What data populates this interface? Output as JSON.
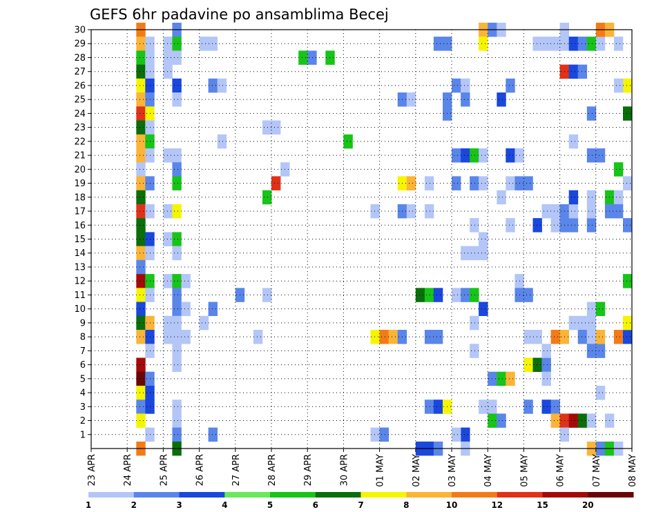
{
  "chart_data": {
    "type": "heatmap",
    "title": "GEFS 6hr padavine po ansamblima Becej",
    "x_ticks": [
      "23 APR",
      "24 APR",
      "25 APR",
      "26 APR",
      "27 APR",
      "28 APR",
      "29 APR",
      "30 APR",
      "01 MAY",
      "02 MAY",
      "03 MAY",
      "04 MAY",
      "05 MAY",
      "06 MAY",
      "07 MAY",
      "08 MAY"
    ],
    "y_ticks": [
      "1",
      "2",
      "3",
      "4",
      "5",
      "6",
      "7",
      "8",
      "9",
      "10",
      "11",
      "12",
      "13",
      "14",
      "15",
      "16",
      "17",
      "18",
      "19",
      "20",
      "21",
      "22",
      "23",
      "24",
      "25",
      "26",
      "27",
      "28",
      "29",
      "30"
    ],
    "y_range": [
      0,
      30
    ],
    "x_range_days": [
      "23 APR",
      "08 MAY"
    ],
    "grid": "dotted",
    "colorbar": {
      "labels": [
        "1",
        "2",
        "3",
        "4",
        "5",
        "6",
        "7",
        "8",
        "10",
        "12",
        "15",
        "20"
      ],
      "colors": [
        "#b3c6f7",
        "#5a86ea",
        "#1a47dc",
        "#6ae85c",
        "#17c417",
        "#0a6e0a",
        "#f5f500",
        "#fbb437",
        "#f37b17",
        "#e03219",
        "#a40a0a",
        "#6a0606"
      ]
    },
    "cells": [
      [
        1.25,
        30,
        9
      ],
      [
        1.25,
        29,
        8
      ],
      [
        1.25,
        28,
        5
      ],
      [
        1.25,
        27,
        6
      ],
      [
        1.25,
        26,
        7
      ],
      [
        1.25,
        25,
        8
      ],
      [
        1.25,
        24,
        10
      ],
      [
        1.25,
        23,
        6
      ],
      [
        1.25,
        22,
        8
      ],
      [
        1.25,
        21,
        8
      ],
      [
        1.25,
        20,
        1
      ],
      [
        1.25,
        19,
        8
      ],
      [
        1.25,
        18,
        6
      ],
      [
        1.25,
        17,
        10
      ],
      [
        1.25,
        16,
        6
      ],
      [
        1.25,
        15,
        6
      ],
      [
        1.25,
        14,
        8
      ],
      [
        1.25,
        13,
        2
      ],
      [
        1.25,
        12,
        11
      ],
      [
        1.25,
        11,
        7
      ],
      [
        1.25,
        10,
        3
      ],
      [
        1.25,
        9,
        6
      ],
      [
        1.25,
        8,
        8
      ],
      [
        1.25,
        6,
        11
      ],
      [
        1.25,
        5,
        12
      ],
      [
        1.25,
        4,
        7
      ],
      [
        1.25,
        3,
        2
      ],
      [
        1.25,
        2,
        7
      ],
      [
        1.25,
        0,
        9
      ],
      [
        1.5,
        29,
        1
      ],
      [
        1.5,
        28,
        1
      ],
      [
        1.5,
        27,
        1
      ],
      [
        1.5,
        26,
        3
      ],
      [
        1.5,
        25,
        2
      ],
      [
        1.5,
        24,
        7
      ],
      [
        1.5,
        23,
        1
      ],
      [
        1.5,
        22,
        5
      ],
      [
        1.5,
        21,
        1
      ],
      [
        1.5,
        19,
        2
      ],
      [
        1.5,
        17,
        1
      ],
      [
        1.5,
        15,
        3
      ],
      [
        1.5,
        14,
        1
      ],
      [
        1.5,
        12,
        5
      ],
      [
        1.5,
        11,
        1
      ],
      [
        1.5,
        9,
        8
      ],
      [
        1.5,
        8,
        3
      ],
      [
        1.5,
        7,
        1
      ],
      [
        1.5,
        5,
        2
      ],
      [
        1.5,
        4,
        3
      ],
      [
        1.5,
        3,
        3
      ],
      [
        1.5,
        1,
        1
      ],
      [
        2.0,
        29,
        1
      ],
      [
        2.0,
        28,
        1
      ],
      [
        2.0,
        27,
        1
      ],
      [
        2.0,
        21,
        1
      ],
      [
        2.0,
        17,
        1
      ],
      [
        2.0,
        15,
        1
      ],
      [
        2.0,
        12,
        1
      ],
      [
        2.0,
        9,
        1
      ],
      [
        2.0,
        8,
        1
      ],
      [
        2.25,
        30,
        2
      ],
      [
        2.25,
        29,
        5
      ],
      [
        2.25,
        28,
        1
      ],
      [
        2.25,
        26,
        3
      ],
      [
        2.25,
        25,
        1
      ],
      [
        2.25,
        21,
        1
      ],
      [
        2.25,
        20,
        2
      ],
      [
        2.25,
        19,
        5
      ],
      [
        2.25,
        17,
        7
      ],
      [
        2.25,
        15,
        5
      ],
      [
        2.25,
        14,
        1
      ],
      [
        2.25,
        12,
        5
      ],
      [
        2.25,
        11,
        2
      ],
      [
        2.25,
        10,
        2
      ],
      [
        2.25,
        9,
        1
      ],
      [
        2.25,
        8,
        1
      ],
      [
        2.25,
        7,
        1
      ],
      [
        2.25,
        6,
        1
      ],
      [
        2.25,
        3,
        1
      ],
      [
        2.25,
        2,
        1
      ],
      [
        2.25,
        1,
        2
      ],
      [
        2.25,
        0,
        6
      ],
      [
        2.5,
        12,
        1
      ],
      [
        2.5,
        10,
        1
      ],
      [
        2.5,
        8,
        1
      ],
      [
        3.0,
        29,
        1
      ],
      [
        3.25,
        29,
        1
      ],
      [
        3.0,
        9,
        1
      ],
      [
        3.25,
        10,
        2
      ],
      [
        3.25,
        26,
        2
      ],
      [
        3.5,
        26,
        1
      ],
      [
        3.25,
        1,
        2
      ],
      [
        3.5,
        22,
        1
      ],
      [
        4.0,
        11,
        2
      ],
      [
        4.5,
        8,
        1
      ],
      [
        4.75,
        11,
        1
      ],
      [
        4.75,
        23,
        1
      ],
      [
        5.0,
        23,
        1
      ],
      [
        5.25,
        20,
        1
      ],
      [
        4.75,
        18,
        5
      ],
      [
        5.0,
        19,
        10
      ],
      [
        5.75,
        28,
        5
      ],
      [
        6.0,
        28,
        2
      ],
      [
        6.5,
        28,
        5
      ],
      [
        7.0,
        22,
        5
      ],
      [
        7.75,
        8,
        7
      ],
      [
        8.0,
        8,
        9
      ],
      [
        8.25,
        8,
        8
      ],
      [
        8.5,
        8,
        2
      ],
      [
        7.75,
        1,
        1
      ],
      [
        8.0,
        1,
        2
      ],
      [
        7.75,
        17,
        1
      ],
      [
        8.5,
        25,
        2
      ],
      [
        8.75,
        25,
        1
      ],
      [
        8.5,
        19,
        7
      ],
      [
        8.75,
        19,
        8
      ],
      [
        8.5,
        17,
        2
      ],
      [
        8.75,
        17,
        1
      ],
      [
        9.0,
        11,
        6
      ],
      [
        9.25,
        11,
        5
      ],
      [
        9.5,
        11,
        3
      ],
      [
        9.25,
        17,
        1
      ],
      [
        9.25,
        8,
        2
      ],
      [
        9.5,
        8,
        2
      ],
      [
        9.0,
        0,
        3
      ],
      [
        9.25,
        0,
        3
      ],
      [
        9.5,
        0,
        2
      ],
      [
        9.25,
        3,
        2
      ],
      [
        9.5,
        3,
        3
      ],
      [
        9.75,
        3,
        7
      ],
      [
        9.5,
        29,
        2
      ],
      [
        9.75,
        29,
        2
      ],
      [
        9.25,
        19,
        1
      ],
      [
        9.75,
        24,
        2
      ],
      [
        9.75,
        25,
        2
      ],
      [
        10.0,
        26,
        2
      ],
      [
        10.25,
        26,
        1
      ],
      [
        10.25,
        25,
        2
      ],
      [
        10.0,
        21,
        2
      ],
      [
        10.25,
        21,
        3
      ],
      [
        10.5,
        21,
        5
      ],
      [
        10.75,
        21,
        1
      ],
      [
        10.0,
        19,
        2
      ],
      [
        10.5,
        19,
        2
      ],
      [
        10.75,
        19,
        1
      ],
      [
        10.0,
        11,
        1
      ],
      [
        10.25,
        11,
        2
      ],
      [
        10.5,
        11,
        5
      ],
      [
        10.25,
        14,
        1
      ],
      [
        10.5,
        14,
        1
      ],
      [
        10.75,
        14,
        1
      ],
      [
        10.75,
        15,
        1
      ],
      [
        10.5,
        16,
        1
      ],
      [
        10.5,
        9,
        1
      ],
      [
        10.5,
        7,
        1
      ],
      [
        10.25,
        1,
        3
      ],
      [
        10.0,
        1,
        1
      ],
      [
        10.25,
        0,
        1
      ],
      [
        10.75,
        10,
        3
      ],
      [
        10.75,
        3,
        1
      ],
      [
        11.0,
        3,
        1
      ],
      [
        11.0,
        2,
        5
      ],
      [
        11.25,
        2,
        2
      ],
      [
        11.0,
        5,
        2
      ],
      [
        11.25,
        5,
        5
      ],
      [
        11.5,
        5,
        8
      ],
      [
        10.75,
        30,
        8
      ],
      [
        11.0,
        30,
        2
      ],
      [
        11.25,
        30,
        1
      ],
      [
        10.75,
        29,
        7
      ],
      [
        11.25,
        18,
        1
      ],
      [
        11.25,
        25,
        3
      ],
      [
        11.5,
        26,
        2
      ],
      [
        11.5,
        21,
        3
      ],
      [
        11.75,
        21,
        1
      ],
      [
        11.5,
        19,
        1
      ],
      [
        11.75,
        19,
        2
      ],
      [
        12.0,
        19,
        2
      ],
      [
        11.75,
        12,
        1
      ],
      [
        11.75,
        11,
        2
      ],
      [
        12.0,
        11,
        2
      ],
      [
        11.5,
        16,
        1
      ],
      [
        12.0,
        8,
        1
      ],
      [
        12.25,
        8,
        1
      ],
      [
        12.0,
        6,
        7
      ],
      [
        12.25,
        6,
        6
      ],
      [
        12.5,
        6,
        2
      ],
      [
        12.5,
        5,
        1
      ],
      [
        12.0,
        3,
        2
      ],
      [
        12.5,
        3,
        3
      ],
      [
        12.75,
        3,
        2
      ],
      [
        12.5,
        7,
        1
      ],
      [
        12.25,
        16,
        3
      ],
      [
        12.75,
        16,
        1
      ],
      [
        13.0,
        16,
        2
      ],
      [
        13.25,
        16,
        2
      ],
      [
        12.5,
        17,
        1
      ],
      [
        12.75,
        17,
        1
      ],
      [
        13.0,
        17,
        2
      ],
      [
        13.25,
        17,
        1
      ],
      [
        12.75,
        8,
        9
      ],
      [
        13.0,
        8,
        8
      ],
      [
        12.75,
        2,
        8
      ],
      [
        13.0,
        2,
        10
      ],
      [
        13.25,
        2,
        11
      ],
      [
        13.5,
        2,
        6
      ],
      [
        13.0,
        1,
        1
      ],
      [
        13.0,
        30,
        1
      ],
      [
        12.75,
        29,
        1
      ],
      [
        12.5,
        29,
        1
      ],
      [
        13.0,
        29,
        1
      ],
      [
        13.25,
        29,
        3
      ],
      [
        13.5,
        29,
        2
      ],
      [
        13.75,
        29,
        5
      ],
      [
        14.0,
        29,
        1
      ],
      [
        12.25,
        29,
        1
      ],
      [
        13.0,
        27,
        10
      ],
      [
        13.25,
        27,
        3
      ],
      [
        13.5,
        27,
        2
      ],
      [
        13.25,
        22,
        1
      ],
      [
        13.25,
        18,
        3
      ],
      [
        13.75,
        18,
        1
      ],
      [
        13.5,
        9,
        1
      ],
      [
        13.25,
        9,
        1
      ],
      [
        13.75,
        9,
        1
      ],
      [
        13.5,
        8,
        2
      ],
      [
        13.75,
        8,
        1
      ],
      [
        13.75,
        10,
        1
      ],
      [
        13.75,
        16,
        2
      ],
      [
        13.75,
        17,
        1
      ],
      [
        13.75,
        21,
        2
      ],
      [
        14.0,
        21,
        2
      ],
      [
        13.75,
        24,
        2
      ],
      [
        13.75,
        7,
        2
      ],
      [
        14.0,
        7,
        2
      ],
      [
        14.0,
        8,
        8
      ],
      [
        14.0,
        10,
        5
      ],
      [
        14.0,
        4,
        1
      ],
      [
        13.75,
        2,
        1
      ],
      [
        14.25,
        2,
        1
      ],
      [
        13.75,
        0,
        8
      ],
      [
        14.0,
        0,
        2
      ],
      [
        14.25,
        0,
        5
      ],
      [
        14.5,
        0,
        1
      ],
      [
        14.0,
        30,
        9
      ],
      [
        14.25,
        30,
        8
      ],
      [
        14.25,
        18,
        5
      ],
      [
        14.5,
        18,
        1
      ],
      [
        14.25,
        17,
        2
      ],
      [
        14.5,
        17,
        2
      ],
      [
        14.5,
        8,
        9
      ],
      [
        14.75,
        8,
        3
      ],
      [
        14.5,
        29,
        1
      ],
      [
        14.75,
        26,
        7
      ],
      [
        14.5,
        26,
        1
      ],
      [
        14.5,
        20,
        5
      ],
      [
        14.75,
        16,
        2
      ],
      [
        14.75,
        12,
        5
      ],
      [
        14.75,
        9,
        7
      ],
      [
        14.75,
        24,
        6
      ],
      [
        14.75,
        19,
        1
      ]
    ]
  }
}
